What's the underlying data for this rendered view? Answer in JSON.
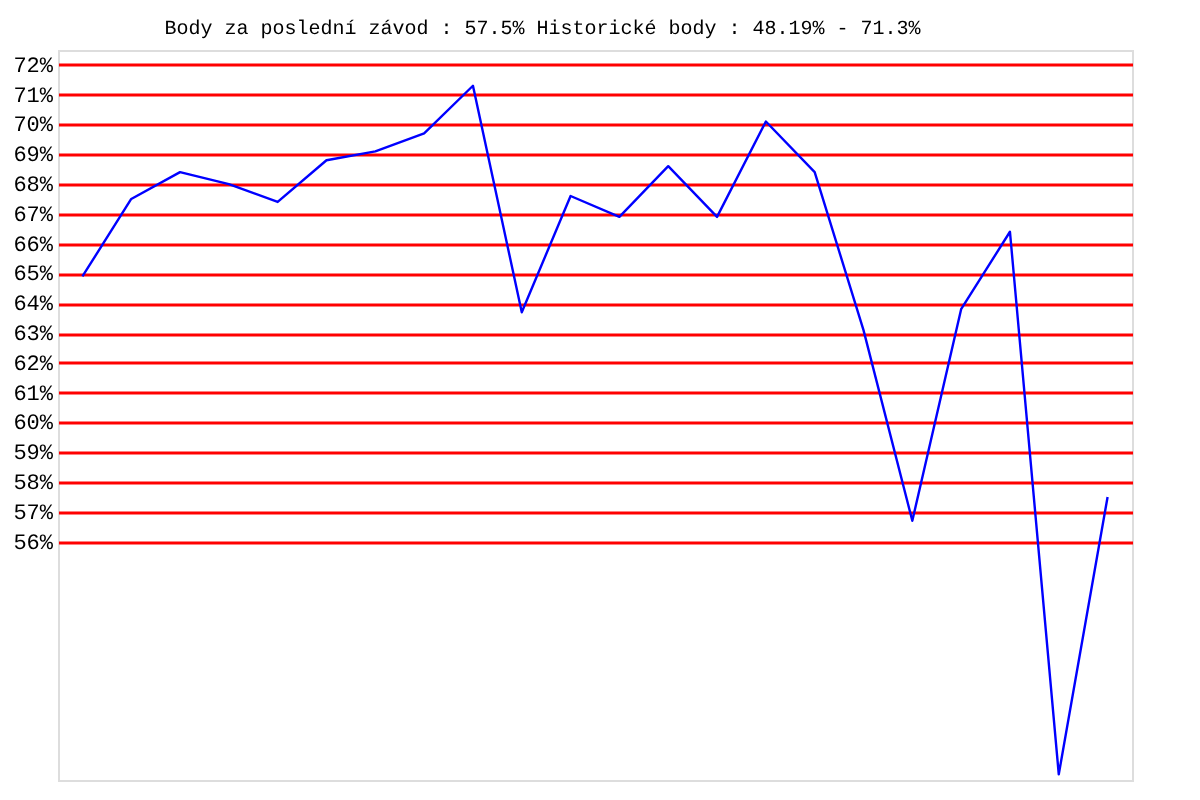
{
  "chart_data": {
    "type": "line",
    "title": "Body za poslední závod : 57.5%  Historické body : 48.19% - 71.3%",
    "categories": [
      null,
      null,
      null,
      null,
      null,
      null,
      null,
      null,
      null,
      null,
      null,
      null,
      null,
      null,
      null,
      null,
      null,
      null,
      null,
      null,
      null,
      null
    ],
    "series": [
      {
        "color": "#0000ff",
        "values": [
          64.9,
          67.5,
          68.4,
          68.0,
          67.4,
          68.8,
          69.1,
          69.7,
          71.3,
          63.7,
          67.6,
          66.9,
          68.6,
          66.9,
          70.1,
          68.4,
          63.1,
          56.7,
          63.8,
          66.4,
          48.19,
          57.5
        ]
      }
    ],
    "ylim": [
      48,
      72.5
    ],
    "yticks": [
      {
        "value": 72,
        "label": "72%"
      },
      {
        "value": 71,
        "label": "71%"
      },
      {
        "value": 70,
        "label": "70%"
      },
      {
        "value": 69,
        "label": "69%"
      },
      {
        "value": 68,
        "label": "68%"
      },
      {
        "value": 67,
        "label": "67%"
      },
      {
        "value": 66,
        "label": "66%"
      },
      {
        "value": 65,
        "label": "65%"
      },
      {
        "value": 64,
        "label": "64%"
      },
      {
        "value": 63,
        "label": "63%"
      },
      {
        "value": 62,
        "label": "62%"
      },
      {
        "value": 61,
        "label": "61%"
      },
      {
        "value": 60,
        "label": "60%"
      },
      {
        "value": 59,
        "label": "59%"
      },
      {
        "value": 58,
        "label": "58%"
      },
      {
        "value": 57,
        "label": "57%"
      },
      {
        "value": 56,
        "label": "56%"
      }
    ],
    "grid": "y",
    "tick_labels": "y",
    "line_style": "solid"
  }
}
